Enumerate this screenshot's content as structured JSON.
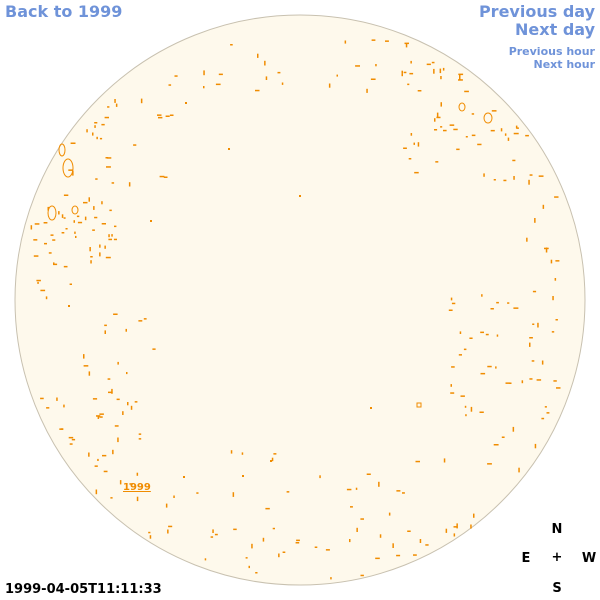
{
  "nav": {
    "back_label": "Back to 1999",
    "prev_day_label": "Previous day",
    "next_day_label": "Next day",
    "prev_hour_label": "Previous hour",
    "next_hour_label": "Next hour"
  },
  "solar_disk": {
    "region_label": "1999"
  },
  "timestamp": "1999-04-05T11:11:33",
  "compass": {
    "north": "N",
    "east": "E",
    "center": "+",
    "west": "W",
    "south": "S"
  },
  "colors": {
    "link": "#6f93d9",
    "disk_fill": "#fef9ec",
    "disk_stroke": "#c8c1b0",
    "feature": "#f08c00"
  }
}
